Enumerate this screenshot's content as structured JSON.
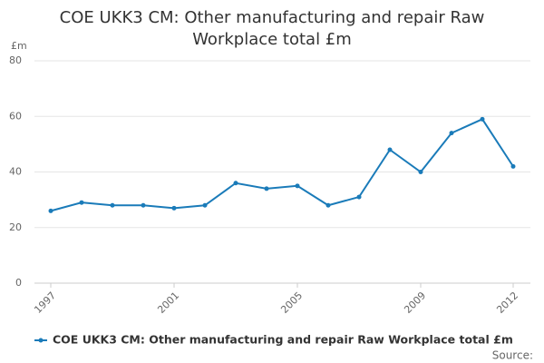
{
  "chart_data": {
    "type": "line",
    "title": "COE UKK3 CM: Other manufacturing and repair Raw Workplace total £m",
    "y_label": "£m",
    "source": "Source:",
    "x": [
      1997,
      1998,
      1999,
      2000,
      2001,
      2002,
      2003,
      2004,
      2005,
      2006,
      2007,
      2008,
      2009,
      2010,
      2011,
      2012
    ],
    "series": [
      {
        "name": "COE UKK3 CM: Other manufacturing and repair Raw Workplace total £m",
        "color": "#1a7bb9",
        "values": [
          26,
          29,
          28,
          28,
          27,
          28,
          36,
          34,
          35,
          28,
          31,
          48,
          40,
          54,
          59,
          42
        ]
      }
    ],
    "xlim": [
      1997,
      2012
    ],
    "xticks": [
      1997,
      2001,
      2005,
      2009,
      2012
    ],
    "ylim": [
      0,
      80
    ],
    "yticks": [
      0,
      20,
      40,
      60,
      80
    ],
    "grid": true,
    "legend": "bottom"
  }
}
